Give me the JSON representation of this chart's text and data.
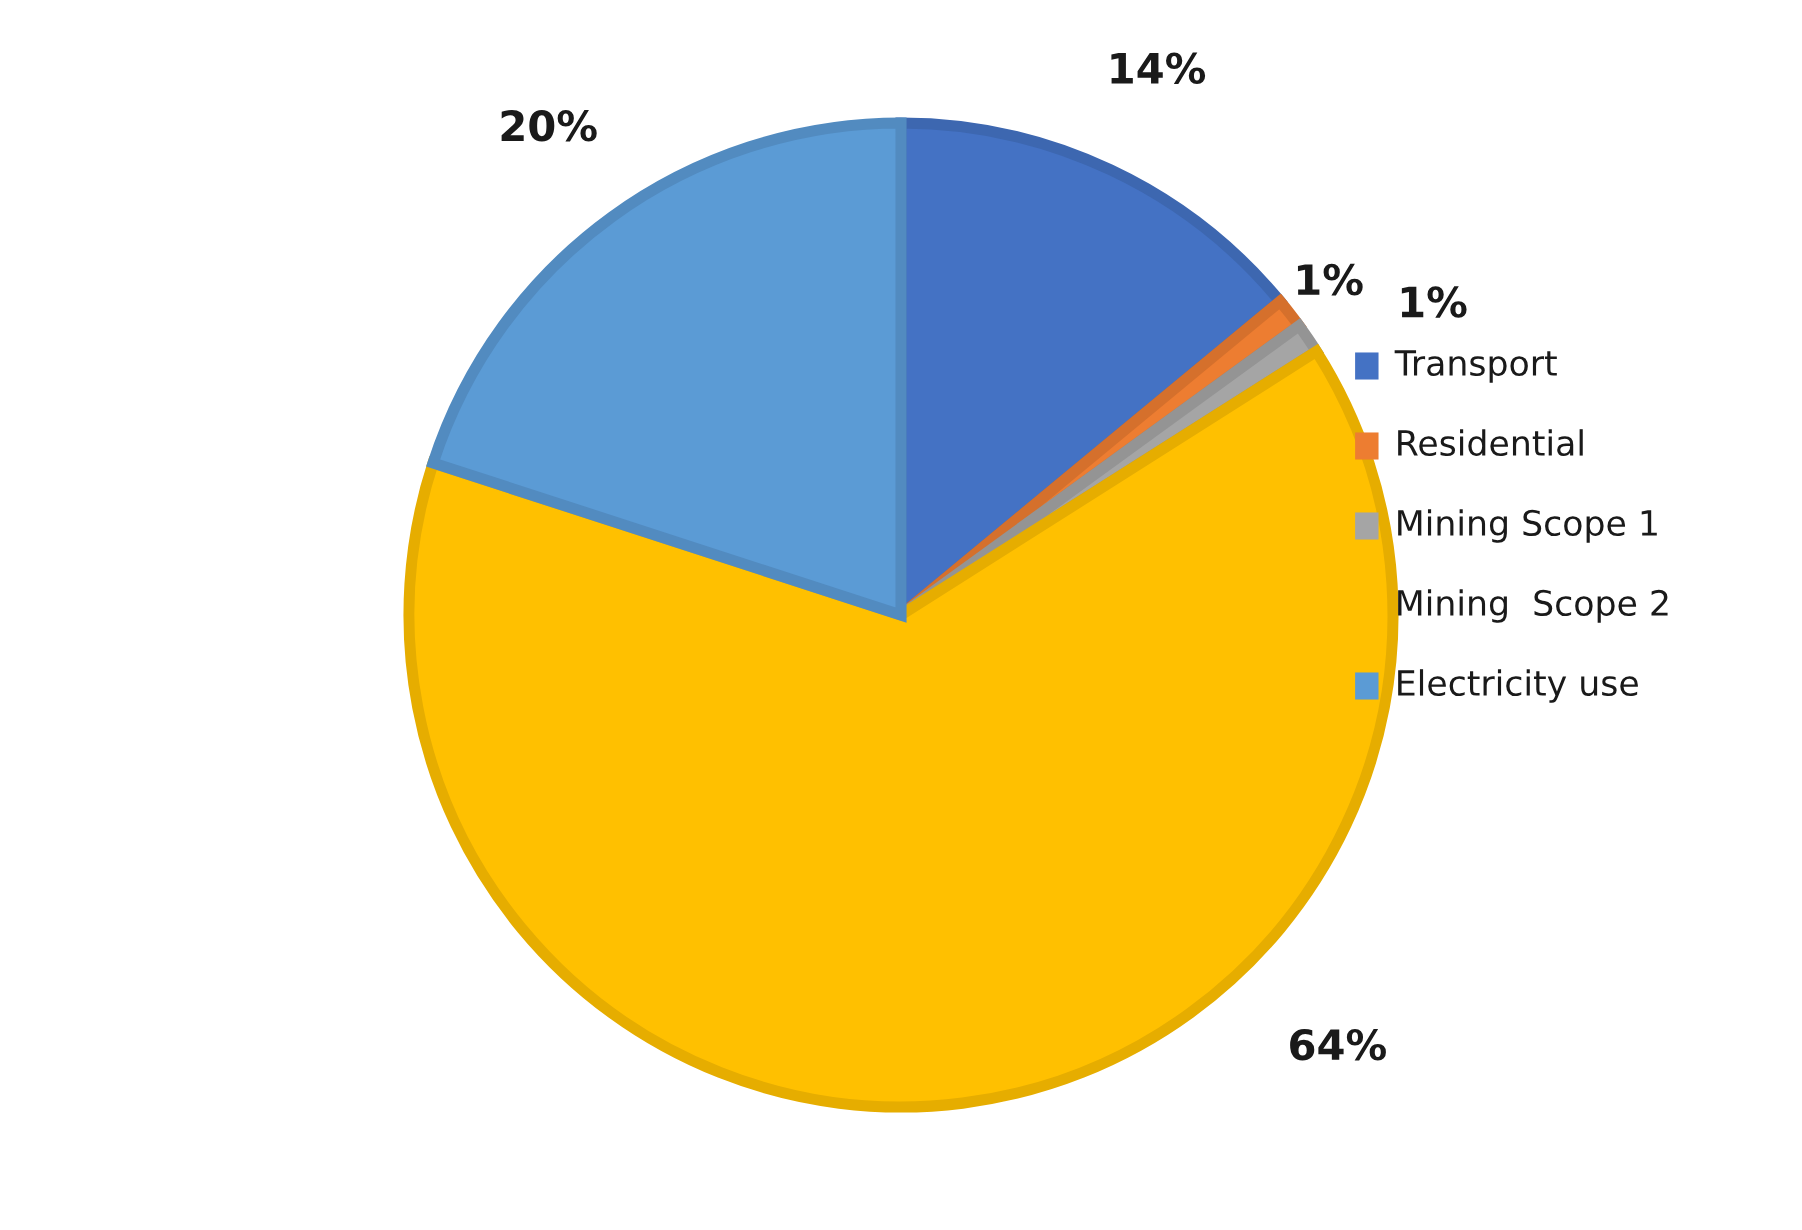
{
  "chart_data": {
    "type": "pie",
    "categories": [
      "Transport",
      "Residential",
      "Mining Scope 1",
      "Mining  Scope 2",
      "Electricity use"
    ],
    "values": [
      14,
      1,
      1,
      64,
      20
    ],
    "colors": [
      "#4472c4",
      "#ed7d31",
      "#a5a5a5",
      "#ffc000",
      "#5b9bd5"
    ],
    "value_labels": [
      "14%",
      "1%",
      "1%",
      "64%",
      "20%"
    ],
    "legend": "right"
  }
}
